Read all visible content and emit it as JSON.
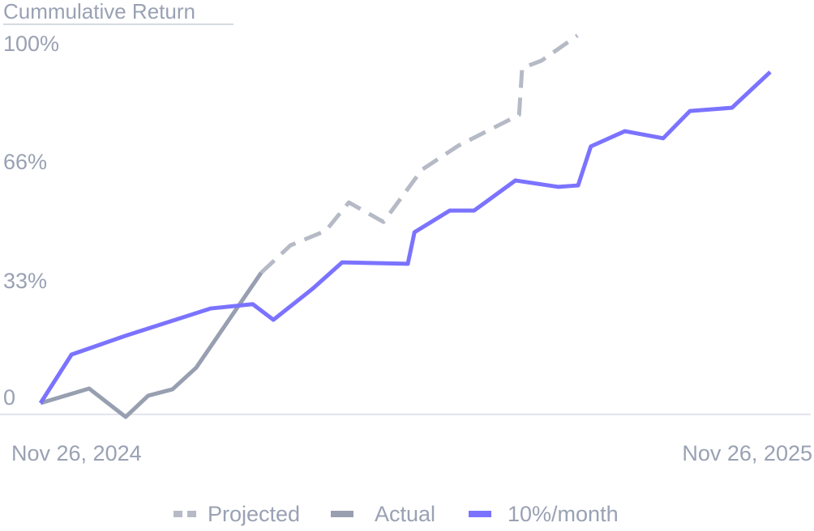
{
  "chart_data": {
    "type": "line",
    "title": "Cummulative Return",
    "xlabel": "",
    "ylabel": "",
    "x_unit": "months since Nov 26, 2024",
    "xlim": [
      0,
      12
    ],
    "ylim": [
      -4,
      105
    ],
    "x_tick_labels": [
      "Nov 26, 2024",
      "Nov 26, 2025"
    ],
    "y_ticks": [
      {
        "value": 0,
        "label": "0"
      },
      {
        "value": 33,
        "label": "33%"
      },
      {
        "value": 66,
        "label": "66%"
      },
      {
        "value": 100,
        "label": "100%"
      }
    ],
    "grid": false,
    "legend_position": "bottom-center",
    "series": [
      {
        "name": "Projected",
        "color": "#b5bac6",
        "style": "dashed",
        "x": [
          3.63,
          4.11,
          4.69,
          5.07,
          5.64,
          6.27,
          6.87,
          7.87,
          7.92,
          8.24,
          8.83
        ],
        "y": [
          36.8,
          44.5,
          48.6,
          56.6,
          51.1,
          65.8,
          72.6,
          81.3,
          94.5,
          96.6,
          103.7
        ]
      },
      {
        "name": "Actual",
        "color": "#979fb0",
        "style": "solid",
        "x": [
          0,
          0.8,
          1.4,
          1.77,
          2.17,
          2.56,
          3.63
        ],
        "y": [
          0,
          4.1,
          -3.9,
          2.1,
          3.9,
          10.0,
          36.8
        ]
      },
      {
        "name": "10%/month",
        "color": "#7b73ff",
        "style": "solid",
        "x": [
          0,
          0.51,
          1.4,
          2.8,
          3.49,
          3.83,
          4.47,
          4.96,
          5.49,
          6.04,
          6.15,
          6.73,
          7.13,
          7.81,
          8.51,
          8.84,
          9.05,
          9.61,
          10.24,
          10.68,
          11.37,
          12
        ],
        "y": [
          0,
          13.7,
          19.0,
          26.7,
          27.9,
          23.5,
          32.2,
          39.7,
          39.5,
          39.3,
          48.2,
          54.3,
          54.3,
          62.8,
          61.0,
          61.4,
          72.4,
          76.7,
          74.7,
          82.4,
          83.3,
          93.4
        ]
      }
    ]
  }
}
